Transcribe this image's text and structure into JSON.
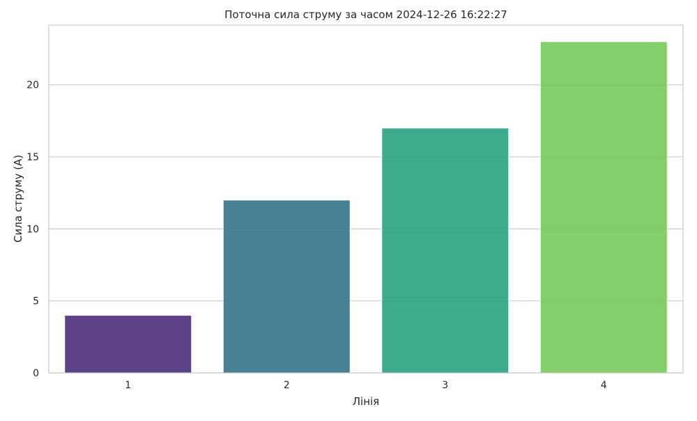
{
  "chart_data": {
    "type": "bar",
    "title": "Поточна сила струму за часом 2024-12-26 16:22:27",
    "xlabel": "Лінія",
    "ylabel": "Сила струму (А)",
    "categories": [
      "1",
      "2",
      "3",
      "4"
    ],
    "values": [
      4,
      12,
      17,
      23
    ],
    "colors": [
      "#482878",
      "#2f6f84",
      "#21a17c",
      "#74c758"
    ],
    "ylim": [
      0,
      24.15
    ],
    "yticks": [
      0,
      5,
      10,
      15,
      20
    ],
    "grid": true,
    "legend": "none"
  }
}
